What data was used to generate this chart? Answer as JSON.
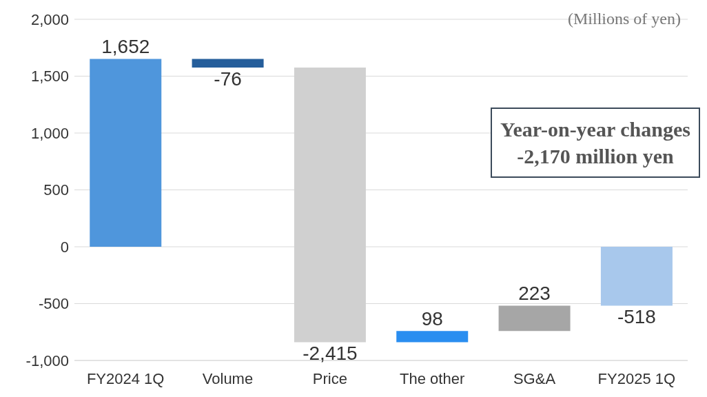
{
  "chart_data": {
    "type": "bar",
    "categories": [
      "FY2024 1Q",
      "Volume",
      "Price",
      "The other",
      "SG&A",
      "FY2025 1Q"
    ],
    "values": [
      1652,
      -76,
      -2415,
      98,
      223,
      -518
    ],
    "base": [
      0,
      1652,
      1576,
      -839,
      -741,
      0
    ],
    "colors": [
      "#4f96dc",
      "#255e9b",
      "#d0d0d0",
      "#2a8ef0",
      "#a6a6a6",
      "#a8c8ec"
    ],
    "ylim": [
      -1000,
      2000
    ],
    "yticks": [
      {
        "value": -1000,
        "label": "-1,000"
      },
      {
        "value": -500,
        "label": "-500"
      },
      {
        "value": 0,
        "label": "0"
      },
      {
        "value": 500,
        "label": "500"
      },
      {
        "value": 1000,
        "label": "1,000"
      },
      {
        "value": 1500,
        "label": "1,500"
      },
      {
        "value": 2000,
        "label": "2,000"
      }
    ],
    "grid": "y",
    "value_labels": [
      "1,652",
      "-76",
      "-2,415",
      "98",
      "223",
      "-518"
    ],
    "annotations": [
      "(Millions of yen)",
      "Year-on-year changes -2,170 million yen"
    ]
  }
}
